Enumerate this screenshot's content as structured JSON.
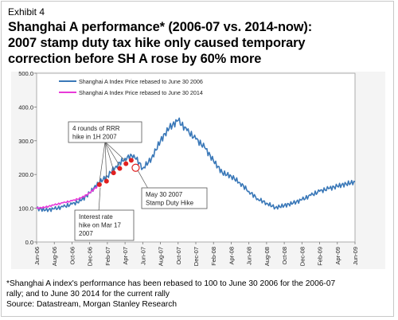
{
  "header": {
    "exhibit": "Exhibit 4",
    "title_line1": "Shanghai A performance* (2006-07 vs. 2014-now):",
    "title_line2": "2007 stamp duty tax hike only caused temporary",
    "title_line3": "correction before SH A rose by 60% more"
  },
  "footnote": {
    "line1": "*Shanghai A index's performance has been rebased to 100 to June 30 2006 for the 2006-07",
    "line2": "rally; and to June 30 2014 for the current rally",
    "line3": "Source: Datastream, Morgan Stanley Research"
  },
  "colors": {
    "series_2006": "#3a78b8",
    "series_2014": "#e83ad8",
    "markers": "#e02020",
    "plot_bg": "#ffffff",
    "panel_bg": "#f4f4f4"
  },
  "chart_data": {
    "type": "line",
    "title": "",
    "xlabel": "",
    "ylabel": "",
    "ylim": [
      0,
      500
    ],
    "yticks": [
      "0.0",
      "100.0",
      "200.0",
      "300.0",
      "400.0",
      "500.0"
    ],
    "x_categories": [
      "Jun-06",
      "Aug-06",
      "Oct-06",
      "Dec-06",
      "Feb-07",
      "Apr-07",
      "Jun-07",
      "Aug-07",
      "Oct-07",
      "Dec-07",
      "Feb-08",
      "Apr-08",
      "Jun-08",
      "Aug-08",
      "Oct-08",
      "Dec-08",
      "Feb-09",
      "Apr-09",
      "Jun-09"
    ],
    "grid": false,
    "legend_position": "top-left",
    "series": [
      {
        "name": "Shanghai A Index Price rebased to June 30 2006",
        "color": "#3a78b8",
        "x": [
          0,
          0.5,
          1,
          1.5,
          2,
          2.5,
          3,
          3.5,
          4,
          4.5,
          5,
          5.5,
          6,
          6.5,
          7,
          7.5,
          8,
          8.5,
          9,
          9.5,
          10,
          10.5,
          11,
          11.5,
          12,
          12.5,
          13,
          13.5,
          14,
          14.5,
          15,
          15.5,
          16,
          16.5,
          17,
          17.5,
          18
        ],
        "values": [
          100,
          94,
          98,
          104,
          112,
          122,
          145,
          175,
          195,
          225,
          248,
          258,
          218,
          248,
          300,
          338,
          360,
          330,
          305,
          280,
          240,
          205,
          195,
          175,
          150,
          128,
          115,
          102,
          108,
          115,
          125,
          138,
          150,
          158,
          165,
          172,
          178
        ]
      },
      {
        "name": "Shanghai A Index Price rebased to June 30 2014",
        "color": "#e83ad8",
        "x": [
          0,
          0.5,
          1,
          1.5,
          2,
          2.5,
          3,
          3.5
        ],
        "values": [
          100,
          103,
          110,
          116,
          122,
          130,
          145,
          168
        ]
      }
    ],
    "markers": {
      "name": "red dots",
      "x": [
        3.55,
        3.95,
        4.35,
        4.7,
        5.05,
        5.35
      ],
      "values": [
        170,
        180,
        205,
        218,
        232,
        242
      ]
    },
    "circle_marker": {
      "x": 5.6,
      "value": 220
    },
    "annotations": [
      {
        "text_lines": [
          "4 rounds of RRR",
          "hike in 1H 2007"
        ]
      },
      {
        "text_lines": [
          "May 30 2007",
          "Stamp Duty Hike"
        ]
      },
      {
        "text_lines": [
          "Interest rate",
          "hike on Mar 17",
          "2007"
        ]
      }
    ]
  }
}
